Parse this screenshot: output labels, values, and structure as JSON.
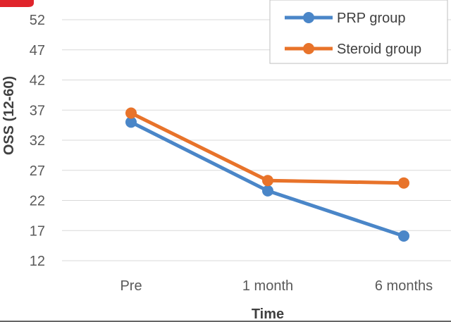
{
  "chart_data": {
    "type": "line",
    "categories": [
      "Pre",
      "1 month",
      "6 months"
    ],
    "series": [
      {
        "name": "PRP group",
        "values": [
          35.0,
          23.6,
          16.1
        ],
        "color": "#4a86c8"
      },
      {
        "name": "Steroid group",
        "values": [
          36.5,
          25.3,
          24.9
        ],
        "color": "#e8732a"
      }
    ],
    "xlabel": "Time",
    "ylabel": "OSS (12-60)",
    "ylim": [
      12,
      52
    ],
    "yticks": [
      12,
      17,
      22,
      27,
      32,
      37,
      42,
      47,
      52
    ],
    "grid": true,
    "legend_position": "top-right"
  }
}
